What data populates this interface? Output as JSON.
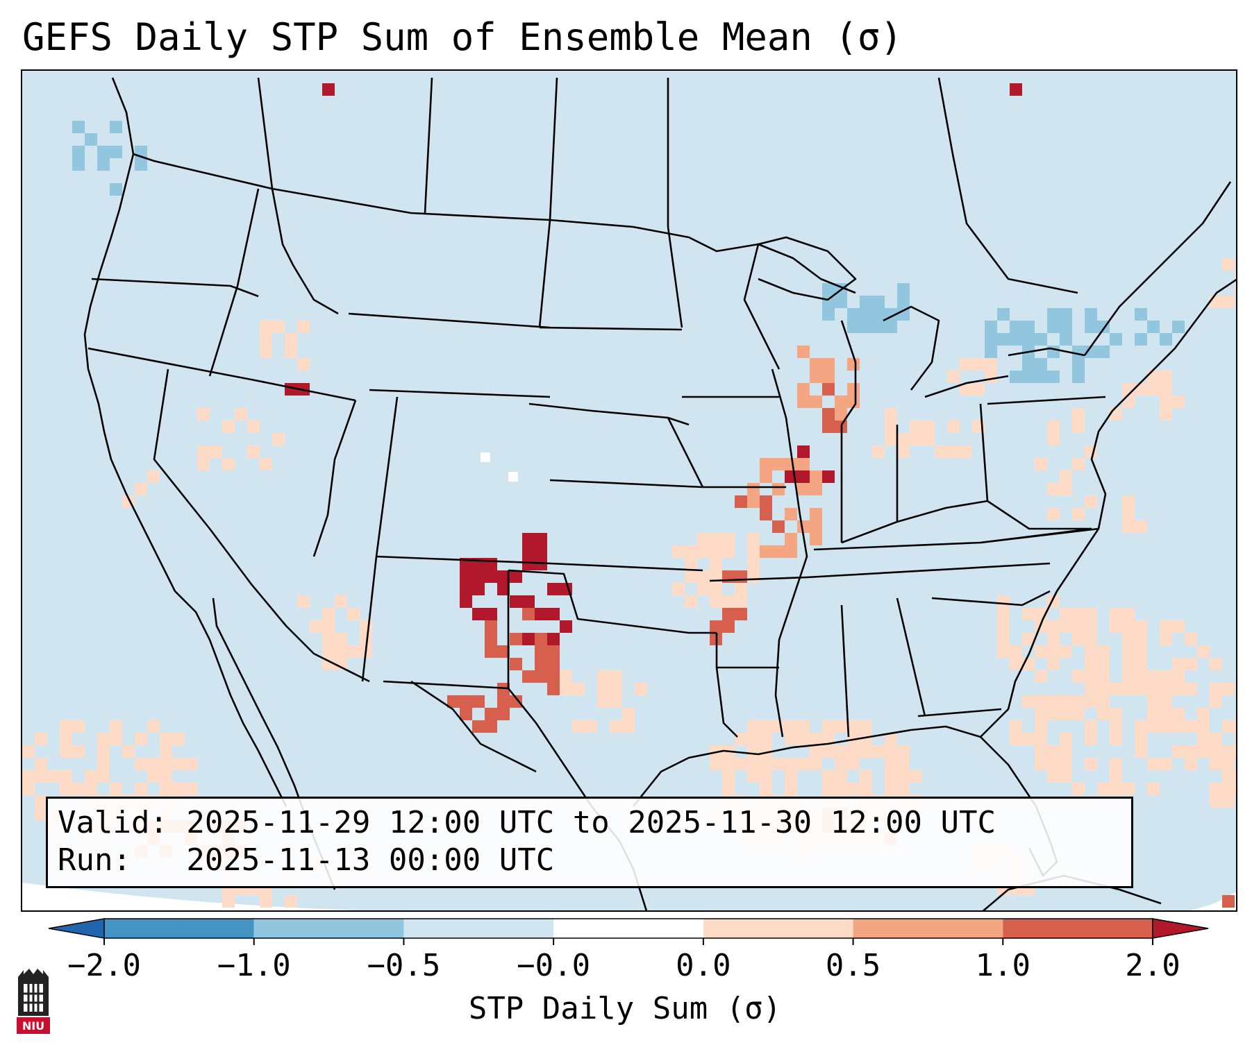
{
  "title": "GEFS Daily STP Sum of Ensemble Mean (σ)",
  "valid_line": "Valid: 2025-11-29 12:00 UTC to 2025-11-30 12:00 UTC",
  "run_line": "Run:   2025-11-13 00:00 UTC",
  "colorbar": {
    "title": "STP Daily Sum (σ)",
    "tick_labels": [
      "−2.0",
      "−1.0",
      "−0.5",
      "−0.0",
      "0.0",
      "0.5",
      "1.0",
      "2.0"
    ],
    "colors": [
      "#4393c3",
      "#92c5de",
      "#d1e5f0",
      "#ffffff",
      "#fddbc7",
      "#f4a582",
      "#d6604d",
      "#b2182b"
    ],
    "extend_low_color": "#2166ac",
    "extend_high_color": "#b2182b"
  },
  "logo_text": "NIU",
  "map_colors": {
    "background": "#d1e5f0",
    "outside": "#ffffff",
    "lines": "#000000"
  },
  "icons": {
    "logo": "niu-tower-icon"
  }
}
